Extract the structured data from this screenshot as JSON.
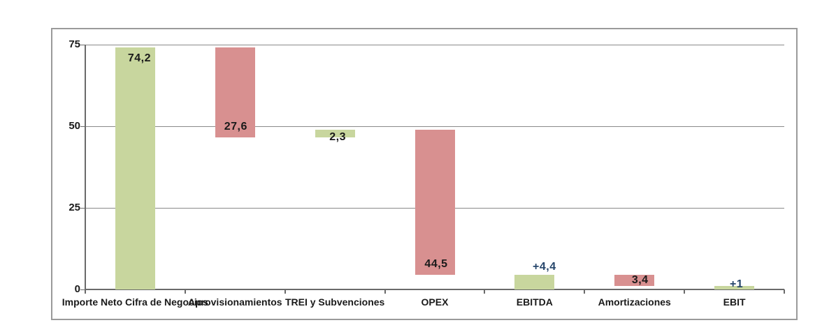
{
  "chart_data": {
    "type": "bar",
    "subtype": "waterfall",
    "title": "",
    "xlabel": "",
    "ylabel": "",
    "ylim": [
      0,
      75
    ],
    "y_ticks": [
      0,
      25,
      50,
      75
    ],
    "grid": true,
    "legend": false,
    "categories": [
      "Importe Neto Cifra de Negocios",
      "Aprovisionamientos",
      "TREI y Subvenciones",
      "OPEX",
      "EBITDA",
      "Amortizaciones",
      "EBIT"
    ],
    "steps": [
      {
        "category": "Importe Neto Cifra de Negocios",
        "from": 0,
        "to": 74.2,
        "change": 74.2,
        "kind": "increase",
        "label": "74,2",
        "label_color": "black",
        "label_pos": "inside-top",
        "label_dx": 6
      },
      {
        "category": "Aprovisionamientos",
        "from": 74.2,
        "to": 46.6,
        "change": -27.6,
        "kind": "decrease",
        "label": "27,6",
        "label_color": "black",
        "label_pos": "inside-bottom",
        "label_dx": 1
      },
      {
        "category": "TREI y Subvenciones",
        "from": 46.6,
        "to": 48.9,
        "change": 2.3,
        "kind": "increase",
        "label": "2,3",
        "label_color": "black",
        "label_pos": "straddle-bottom",
        "label_dx": 4
      },
      {
        "category": "OPEX",
        "from": 48.9,
        "to": 4.4,
        "change": -44.5,
        "kind": "decrease",
        "label": "44,5",
        "label_color": "black",
        "label_pos": "inside-bottom",
        "label_dx": 2
      },
      {
        "category": "EBITDA",
        "from": 0,
        "to": 4.4,
        "change": 4.4,
        "kind": "increase",
        "label": "+4,4",
        "label_color": "navy",
        "label_pos": "above",
        "label_dx": 14
      },
      {
        "category": "Amortizaciones",
        "from": 4.4,
        "to": 1,
        "change": -3.4,
        "kind": "decrease",
        "label": "3,4",
        "label_color": "black",
        "label_pos": "inside-center",
        "label_dx": 8
      },
      {
        "category": "EBIT",
        "from": 0,
        "to": 1,
        "change": 1,
        "kind": "increase",
        "label": "+1",
        "label_color": "navy",
        "label_pos": "straddle-top",
        "label_dx": 3
      }
    ]
  },
  "colors": {
    "increase": "#c8d69e",
    "decrease": "#d89090",
    "navy_label": "#26466b",
    "black_label": "#1a1a1a",
    "grid": "#8a8a8a",
    "axis": "#6a6a6a",
    "frame_border": "#9a9a9a",
    "background": "#ffffff"
  }
}
